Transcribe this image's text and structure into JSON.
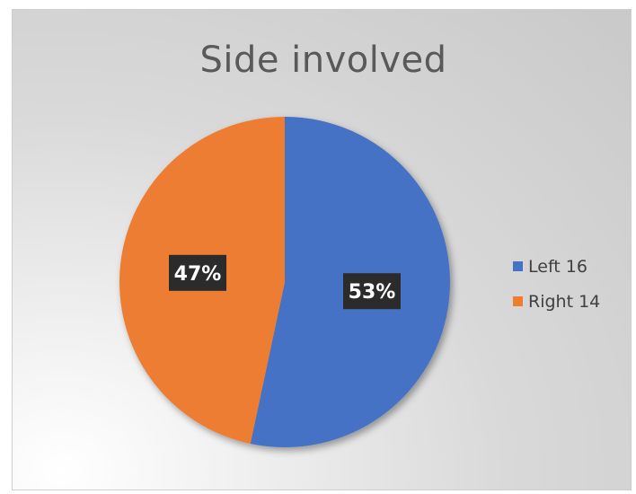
{
  "chart_data": {
    "type": "pie",
    "title": "Side involved",
    "categories": [
      "Left 16",
      "Right 14"
    ],
    "values": [
      16,
      14
    ],
    "percent_labels": [
      "53%",
      "47%"
    ],
    "colors": [
      "#4472c4",
      "#ed7d31"
    ],
    "legend_position": "right"
  }
}
